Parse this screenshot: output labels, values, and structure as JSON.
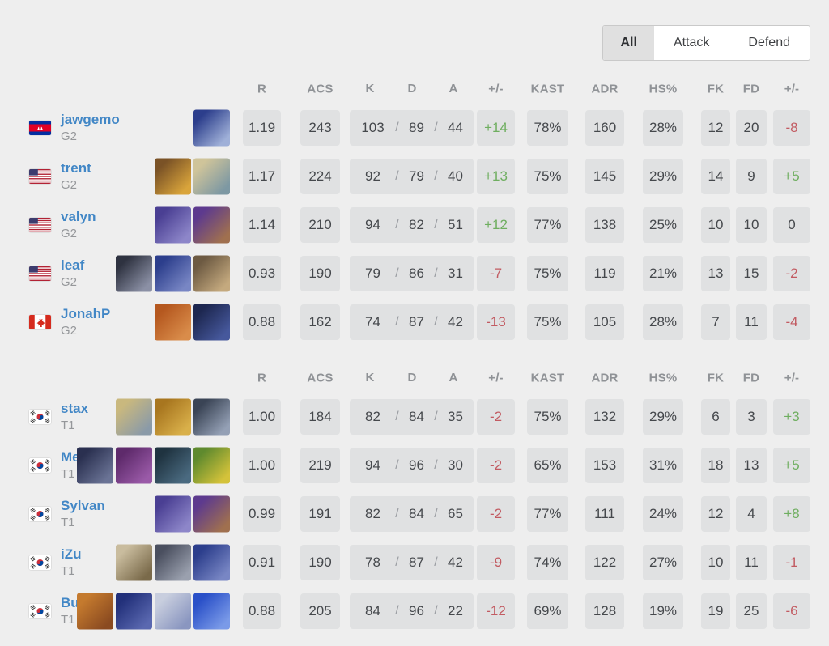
{
  "tabs": [
    {
      "label": "All",
      "active": true
    },
    {
      "label": "Attack",
      "active": false
    },
    {
      "label": "Defend",
      "active": false
    }
  ],
  "headers": {
    "r": "R",
    "acs": "ACS",
    "k": "K",
    "d": "D",
    "a": "A",
    "pm1": "+/-",
    "kast": "KAST",
    "adr": "ADR",
    "hs": "HS%",
    "fk": "FK",
    "fd": "FD",
    "pm2": "+/-"
  },
  "kda_separator": "/",
  "colors": {
    "positive": "#6fae60",
    "negative": "#c25b62",
    "neutral": "#45484c",
    "player_link": "#4287c6",
    "cell_bg": "#e0e1e2"
  },
  "teams": [
    {
      "name": "G2",
      "players": [
        {
          "player": "jawgemo",
          "team": "G2",
          "country": "kh",
          "agents": [
            {
              "colors": [
                "#2c3e8c",
                "#9fb0d8"
              ]
            }
          ],
          "r": "1.19",
          "acs": "243",
          "k": "103",
          "d": "89",
          "a": "44",
          "pm1": "+14",
          "kast": "78%",
          "adr": "160",
          "hs": "28%",
          "fk": "12",
          "fd": "20",
          "pm2": "-8"
        },
        {
          "player": "trent",
          "team": "G2",
          "country": "us",
          "agents": [
            {
              "colors": [
                "#7a5226",
                "#d9a43b"
              ]
            },
            {
              "colors": [
                "#cfc49a",
                "#7d98a3"
              ]
            }
          ],
          "r": "1.17",
          "acs": "224",
          "k": "92",
          "d": "79",
          "a": "40",
          "pm1": "+13",
          "kast": "75%",
          "adr": "145",
          "hs": "29%",
          "fk": "14",
          "fd": "9",
          "pm2": "+5"
        },
        {
          "player": "valyn",
          "team": "G2",
          "country": "us",
          "agents": [
            {
              "colors": [
                "#4a3f93",
                "#8d86c9"
              ]
            },
            {
              "colors": [
                "#5d3a8e",
                "#a0704f"
              ]
            }
          ],
          "r": "1.14",
          "acs": "210",
          "k": "94",
          "d": "82",
          "a": "51",
          "pm1": "+12",
          "kast": "77%",
          "adr": "138",
          "hs": "25%",
          "fk": "10",
          "fd": "10",
          "pm2": "0"
        },
        {
          "player": "leaf",
          "team": "G2",
          "country": "us",
          "agents": [
            {
              "colors": [
                "#2e3240",
                "#8b90a5"
              ]
            },
            {
              "colors": [
                "#2c3e8c",
                "#7886c4"
              ]
            },
            {
              "colors": [
                "#6d5a42",
                "#c4a97e"
              ]
            }
          ],
          "r": "0.93",
          "acs": "190",
          "k": "79",
          "d": "86",
          "a": "31",
          "pm1": "-7",
          "kast": "75%",
          "adr": "119",
          "hs": "21%",
          "fk": "13",
          "fd": "15",
          "pm2": "-2"
        },
        {
          "player": "JonahP",
          "team": "G2",
          "country": "ca",
          "agents": [
            {
              "colors": [
                "#b5581f",
                "#d98c4a"
              ]
            },
            {
              "colors": [
                "#1d2750",
                "#46589c"
              ]
            }
          ],
          "r": "0.88",
          "acs": "162",
          "k": "74",
          "d": "87",
          "a": "42",
          "pm1": "-13",
          "kast": "75%",
          "adr": "105",
          "hs": "28%",
          "fk": "7",
          "fd": "11",
          "pm2": "-4"
        }
      ]
    },
    {
      "name": "T1",
      "players": [
        {
          "player": "stax",
          "team": "T1",
          "country": "kr",
          "agents": [
            {
              "colors": [
                "#c9b87e",
                "#8a9aa8"
              ]
            },
            {
              "colors": [
                "#a8761f",
                "#d9b04a"
              ]
            },
            {
              "colors": [
                "#3a4455",
                "#94a0b5"
              ]
            }
          ],
          "r": "1.00",
          "acs": "184",
          "k": "82",
          "d": "84",
          "a": "35",
          "pm1": "-2",
          "kast": "75%",
          "adr": "132",
          "hs": "29%",
          "fk": "6",
          "fd": "3",
          "pm2": "+3"
        },
        {
          "player": "Meteor",
          "team": "T1",
          "country": "kr",
          "agents": [
            {
              "colors": [
                "#2a3050",
                "#6a7395"
              ]
            },
            {
              "colors": [
                "#5e2a6b",
                "#9a5aa8"
              ]
            },
            {
              "colors": [
                "#1f3340",
                "#4a6a80"
              ]
            },
            {
              "colors": [
                "#5f8a2e",
                "#d4c23a"
              ]
            }
          ],
          "r": "1.00",
          "acs": "219",
          "k": "94",
          "d": "96",
          "a": "30",
          "pm1": "-2",
          "kast": "65%",
          "adr": "153",
          "hs": "31%",
          "fk": "18",
          "fd": "13",
          "pm2": "+5"
        },
        {
          "player": "Sylvan",
          "team": "T1",
          "country": "kr",
          "agents": [
            {
              "colors": [
                "#4a3f93",
                "#8d86c9"
              ]
            },
            {
              "colors": [
                "#5d3a8e",
                "#a0704f"
              ]
            }
          ],
          "r": "0.99",
          "acs": "191",
          "k": "82",
          "d": "84",
          "a": "65",
          "pm1": "-2",
          "kast": "77%",
          "adr": "111",
          "hs": "24%",
          "fk": "12",
          "fd": "4",
          "pm2": "+8"
        },
        {
          "player": "iZu",
          "team": "T1",
          "country": "kr",
          "agents": [
            {
              "colors": [
                "#c9bc9e",
                "#7a6a4a"
              ]
            },
            {
              "colors": [
                "#4a4f5f",
                "#9aa0ae"
              ]
            },
            {
              "colors": [
                "#2c3e8c",
                "#7886c4"
              ]
            }
          ],
          "r": "0.91",
          "acs": "190",
          "k": "78",
          "d": "87",
          "a": "42",
          "pm1": "-9",
          "kast": "74%",
          "adr": "122",
          "hs": "27%",
          "fk": "10",
          "fd": "11",
          "pm2": "-1"
        },
        {
          "player": "BuZz",
          "team": "T1",
          "country": "kr",
          "agents": [
            {
              "colors": [
                "#c47a2e",
                "#8a4a20"
              ]
            },
            {
              "colors": [
                "#22307a",
                "#5a68b0"
              ]
            },
            {
              "colors": [
                "#c8cede",
                "#8a96c0"
              ]
            },
            {
              "colors": [
                "#2a50c8",
                "#7a9ae8"
              ]
            }
          ],
          "r": "0.88",
          "acs": "205",
          "k": "84",
          "d": "96",
          "a": "22",
          "pm1": "-12",
          "kast": "69%",
          "adr": "128",
          "hs": "19%",
          "fk": "19",
          "fd": "25",
          "pm2": "-6"
        }
      ]
    }
  ]
}
